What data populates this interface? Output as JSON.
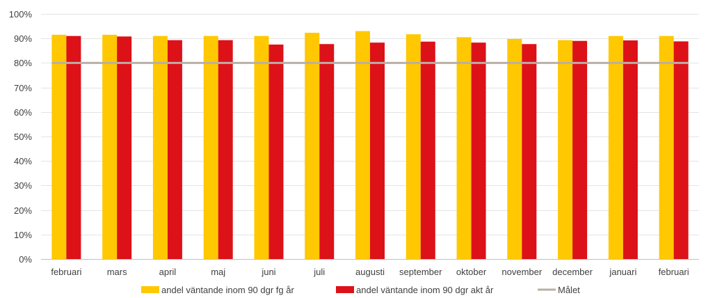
{
  "chart_data": {
    "type": "bar",
    "categories": [
      "februari",
      "mars",
      "april",
      "maj",
      "juni",
      "juli",
      "augusti",
      "september",
      "oktober",
      "november",
      "december",
      "januari",
      "februari"
    ],
    "series": [
      {
        "name": "andel väntande inom 90 dgr fg år",
        "color": "#FFC800",
        "values": [
          91.5,
          91.5,
          91.0,
          91.0,
          91.0,
          92.3,
          93.0,
          91.7,
          90.5,
          89.8,
          89.3,
          91.0,
          91.0
        ]
      },
      {
        "name": "andel väntande inom 90 dgr akt år",
        "color": "#DD1118",
        "values": [
          91.0,
          90.8,
          89.3,
          89.3,
          87.5,
          87.7,
          88.3,
          88.7,
          88.3,
          87.7,
          89.0,
          89.2,
          88.8
        ]
      }
    ],
    "target": {
      "name": "Målet",
      "value": 80,
      "color": "#B9AFA6"
    },
    "ylim": [
      0,
      100
    ],
    "yticks": [
      "0%",
      "10%",
      "20%",
      "30%",
      "40%",
      "50%",
      "60%",
      "70%",
      "80%",
      "90%",
      "100%"
    ],
    "grid": true,
    "legend_position": "bottom"
  }
}
